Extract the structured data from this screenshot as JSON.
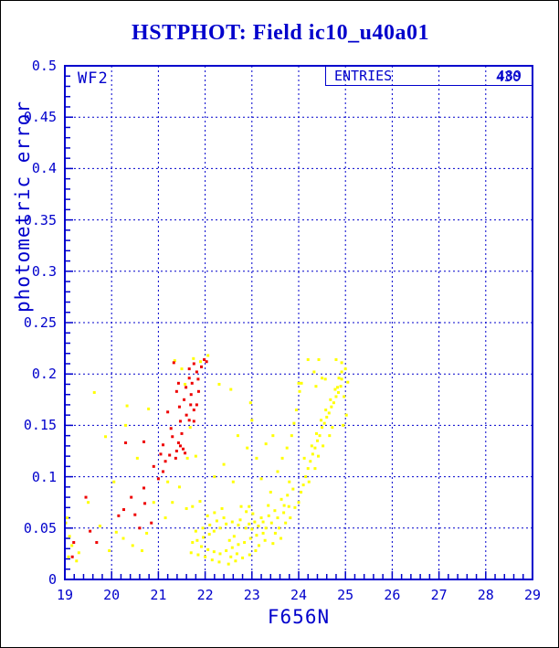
{
  "title": "HSTPHOT: Field ic10_u40a01",
  "annotations": {
    "chip_label": "WF2",
    "entries_label": "ENTRIES",
    "entries_values": [
      "489",
      "430"
    ]
  },
  "colors": {
    "axis": "#0000CC",
    "title": "#0000CC",
    "background": "#FFFFFF",
    "outer_border": "#000000",
    "series_red": "#EE0000",
    "series_yellow": "#FFFF00"
  },
  "chart_data": {
    "type": "scatter",
    "title": "HSTPHOT: Field ic10_u40a01",
    "xlabel": "F656N",
    "ylabel": "photometric error",
    "xlim": [
      19,
      29
    ],
    "ylim": [
      0,
      0.5
    ],
    "x_tick_labels": [
      "19",
      "20",
      "21",
      "22",
      "23",
      "24",
      "25",
      "26",
      "27",
      "28",
      "29"
    ],
    "x_major_ticks": [
      19,
      20,
      21,
      22,
      23,
      24,
      25,
      26,
      27,
      28,
      29
    ],
    "y_tick_labels": [
      "0",
      "0.05",
      "0.1",
      "0.15",
      "0.2",
      "0.25",
      "0.3",
      "0.35",
      "0.4",
      "0.45",
      "0.5"
    ],
    "y_major_ticks": [
      0,
      0.05,
      0.1,
      0.15,
      0.2,
      0.25,
      0.3,
      0.35,
      0.4,
      0.45,
      0.5
    ],
    "x_minor_step": 0.2,
    "y_minor_step": 0.01,
    "grid": "dashed-at-major-ticks",
    "legend_position": "none",
    "marker": "square-3px",
    "series": [
      {
        "name": "yellow-points",
        "color": "#FFFF00",
        "points": [
          [
            19.05,
            0.06
          ],
          [
            19.1,
            0.042
          ],
          [
            19.15,
            0.033
          ],
          [
            19.3,
            0.026
          ],
          [
            19.63,
            0.182
          ],
          [
            20.33,
            0.169
          ],
          [
            20.79,
            0.166
          ],
          [
            19.87,
            0.139
          ],
          [
            20.05,
            0.095
          ],
          [
            19.5,
            0.075
          ],
          [
            19.75,
            0.052
          ],
          [
            20.1,
            0.046
          ],
          [
            20.25,
            0.04
          ],
          [
            20.45,
            0.033
          ],
          [
            20.3,
            0.15
          ],
          [
            20.55,
            0.118
          ],
          [
            20.9,
            0.075
          ],
          [
            21.15,
            0.06
          ],
          [
            20.75,
            0.045
          ],
          [
            21.3,
            0.075
          ],
          [
            21.45,
            0.09
          ],
          [
            21.2,
            0.095
          ],
          [
            19.95,
            0.028
          ],
          [
            20.65,
            0.028
          ],
          [
            21.5,
            0.205
          ],
          [
            21.35,
            0.213
          ],
          [
            21.75,
            0.215
          ],
          [
            22.06,
            0.218
          ],
          [
            21.9,
            0.212
          ],
          [
            21.57,
            0.19
          ],
          [
            21.68,
            0.148
          ],
          [
            21.8,
            0.12
          ],
          [
            21.62,
            0.118
          ],
          [
            19.02,
            0.055
          ],
          [
            19.08,
            0.022
          ],
          [
            19.25,
            0.018
          ],
          [
            22.3,
            0.19
          ],
          [
            22.55,
            0.185
          ],
          [
            22.97,
            0.172
          ],
          [
            23.0,
            0.155
          ],
          [
            22.7,
            0.14
          ],
          [
            22.9,
            0.128
          ],
          [
            23.1,
            0.118
          ],
          [
            22.4,
            0.112
          ],
          [
            22.2,
            0.1
          ],
          [
            22.6,
            0.095
          ],
          [
            23.3,
            0.132
          ],
          [
            23.45,
            0.14
          ],
          [
            23.2,
            0.098
          ],
          [
            23.55,
            0.105
          ],
          [
            23.65,
            0.118
          ],
          [
            23.4,
            0.085
          ],
          [
            23.75,
            0.128
          ],
          [
            23.85,
            0.14
          ],
          [
            23.9,
            0.152
          ],
          [
            23.95,
            0.165
          ],
          [
            24.0,
            0.191
          ],
          [
            23.8,
            0.095
          ],
          [
            24.05,
            0.085
          ],
          [
            24.1,
            0.092
          ],
          [
            24.15,
            0.1
          ],
          [
            24.2,
            0.108
          ],
          [
            24.12,
            0.118
          ],
          [
            24.25,
            0.115
          ],
          [
            24.3,
            0.122
          ],
          [
            24.28,
            0.13
          ],
          [
            24.35,
            0.128
          ],
          [
            24.4,
            0.135
          ],
          [
            24.38,
            0.142
          ],
          [
            24.45,
            0.14
          ],
          [
            24.5,
            0.148
          ],
          [
            24.48,
            0.155
          ],
          [
            24.55,
            0.152
          ],
          [
            24.6,
            0.158
          ],
          [
            24.58,
            0.165
          ],
          [
            24.65,
            0.162
          ],
          [
            24.7,
            0.168
          ],
          [
            24.68,
            0.175
          ],
          [
            24.75,
            0.172
          ],
          [
            24.8,
            0.178
          ],
          [
            24.78,
            0.185
          ],
          [
            24.85,
            0.182
          ],
          [
            24.9,
            0.188
          ],
          [
            24.92,
            0.195
          ],
          [
            24.86,
            0.196
          ],
          [
            24.83,
            0.187
          ],
          [
            24.2,
            0.214
          ],
          [
            24.43,
            0.214
          ],
          [
            24.8,
            0.214
          ],
          [
            24.92,
            0.211
          ],
          [
            24.92,
            0.202
          ],
          [
            24.33,
            0.202
          ],
          [
            24.5,
            0.196
          ],
          [
            24.57,
            0.195
          ],
          [
            24.06,
            0.191
          ],
          [
            24.37,
            0.188
          ],
          [
            24.02,
            0.183
          ],
          [
            25.0,
            0.205
          ],
          [
            25.05,
            0.192
          ],
          [
            24.97,
            0.178
          ],
          [
            25.02,
            0.16
          ],
          [
            24.95,
            0.15
          ],
          [
            24.72,
            0.148
          ],
          [
            24.66,
            0.14
          ],
          [
            24.52,
            0.13
          ],
          [
            24.42,
            0.12
          ],
          [
            24.35,
            0.108
          ],
          [
            24.22,
            0.095
          ],
          [
            21.6,
            0.069
          ],
          [
            21.73,
            0.071
          ],
          [
            21.89,
            0.076
          ],
          [
            22.36,
            0.069
          ],
          [
            22.77,
            0.071
          ],
          [
            22.94,
            0.071
          ],
          [
            23.63,
            0.078
          ],
          [
            23.69,
            0.072
          ],
          [
            23.79,
            0.071
          ],
          [
            23.49,
            0.067
          ],
          [
            23.36,
            0.062
          ],
          [
            23.2,
            0.06
          ],
          [
            23.24,
            0.056
          ],
          [
            23.06,
            0.056
          ],
          [
            22.94,
            0.054
          ],
          [
            23.14,
            0.052
          ],
          [
            23.0,
            0.049
          ],
          [
            22.87,
            0.05
          ],
          [
            22.71,
            0.053
          ],
          [
            22.58,
            0.056
          ],
          [
            22.75,
            0.058
          ],
          [
            22.45,
            0.054
          ],
          [
            22.32,
            0.05
          ],
          [
            22.19,
            0.047
          ],
          [
            22.09,
            0.044
          ],
          [
            21.96,
            0.041
          ],
          [
            21.83,
            0.038
          ],
          [
            21.73,
            0.036
          ],
          [
            21.92,
            0.032
          ],
          [
            22.06,
            0.029
          ],
          [
            22.19,
            0.027
          ],
          [
            22.32,
            0.025
          ],
          [
            22.45,
            0.028
          ],
          [
            22.58,
            0.031
          ],
          [
            22.71,
            0.034
          ],
          [
            22.84,
            0.036
          ],
          [
            22.97,
            0.04
          ],
          [
            23.1,
            0.043
          ],
          [
            23.24,
            0.045
          ],
          [
            22.0,
            0.022
          ],
          [
            22.15,
            0.019
          ],
          [
            22.3,
            0.017
          ],
          [
            22.5,
            0.015
          ],
          [
            22.65,
            0.018
          ],
          [
            22.8,
            0.021
          ],
          [
            22.95,
            0.024
          ],
          [
            23.08,
            0.028
          ],
          [
            23.3,
            0.05
          ],
          [
            23.42,
            0.055
          ],
          [
            23.55,
            0.06
          ],
          [
            23.68,
            0.065
          ],
          [
            23.15,
            0.033
          ],
          [
            23.28,
            0.038
          ],
          [
            23.5,
            0.045
          ],
          [
            22.4,
            0.06
          ],
          [
            22.25,
            0.057
          ],
          [
            22.1,
            0.053
          ],
          [
            21.95,
            0.05
          ],
          [
            21.8,
            0.047
          ],
          [
            21.7,
            0.026
          ],
          [
            21.85,
            0.024
          ],
          [
            22.62,
            0.042
          ],
          [
            22.52,
            0.038
          ],
          [
            22.68,
            0.025
          ],
          [
            23.02,
            0.064
          ],
          [
            22.88,
            0.066
          ],
          [
            22.2,
            0.065
          ],
          [
            22.05,
            0.062
          ],
          [
            23.76,
            0.082
          ],
          [
            23.88,
            0.088
          ],
          [
            22.55,
            0.022
          ],
          [
            23.35,
            0.072
          ],
          [
            23.58,
            0.05
          ],
          [
            23.45,
            0.035
          ],
          [
            23.62,
            0.04
          ],
          [
            23.72,
            0.055
          ],
          [
            23.82,
            0.06
          ],
          [
            23.92,
            0.07
          ],
          [
            24.0,
            0.075
          ]
        ]
      },
      {
        "name": "red-points",
        "color": "#EE0000",
        "points": [
          [
            21.33,
            0.211
          ],
          [
            21.76,
            0.21
          ],
          [
            21.82,
            0.202
          ],
          [
            21.98,
            0.214
          ],
          [
            22.03,
            0.212
          ],
          [
            21.92,
            0.207
          ],
          [
            21.66,
            0.205
          ],
          [
            21.66,
            0.196
          ],
          [
            21.43,
            0.191
          ],
          [
            21.59,
            0.187
          ],
          [
            21.72,
            0.191
          ],
          [
            21.39,
            0.183
          ],
          [
            21.86,
            0.183
          ],
          [
            21.69,
            0.17
          ],
          [
            21.82,
            0.17
          ],
          [
            21.76,
            0.165
          ],
          [
            21.2,
            0.163
          ],
          [
            21.66,
            0.155
          ],
          [
            21.76,
            0.154
          ],
          [
            21.47,
            0.154
          ],
          [
            21.27,
            0.147
          ],
          [
            21.3,
            0.139
          ],
          [
            21.43,
            0.133
          ],
          [
            21.47,
            0.13
          ],
          [
            21.53,
            0.127
          ],
          [
            21.57,
            0.123
          ],
          [
            21.39,
            0.125
          ],
          [
            21.24,
            0.121
          ],
          [
            21.37,
            0.118
          ],
          [
            21.1,
            0.131
          ],
          [
            20.69,
            0.134
          ],
          [
            20.3,
            0.133
          ],
          [
            21.1,
            0.105
          ],
          [
            21.0,
            0.098
          ],
          [
            20.69,
            0.089
          ],
          [
            20.42,
            0.08
          ],
          [
            20.71,
            0.074
          ],
          [
            20.26,
            0.068
          ],
          [
            20.5,
            0.063
          ],
          [
            19.45,
            0.08
          ],
          [
            19.54,
            0.047
          ],
          [
            19.68,
            0.036
          ],
          [
            19.19,
            0.036
          ],
          [
            19.16,
            0.022
          ],
          [
            20.9,
            0.11
          ],
          [
            21.15,
            0.115
          ],
          [
            21.5,
            0.142
          ],
          [
            21.6,
            0.16
          ],
          [
            21.85,
            0.195
          ],
          [
            21.7,
            0.18
          ],
          [
            21.55,
            0.175
          ],
          [
            21.45,
            0.168
          ],
          [
            20.85,
            0.055
          ],
          [
            20.6,
            0.05
          ],
          [
            21.05,
            0.122
          ],
          [
            20.15,
            0.062
          ]
        ]
      }
    ]
  }
}
